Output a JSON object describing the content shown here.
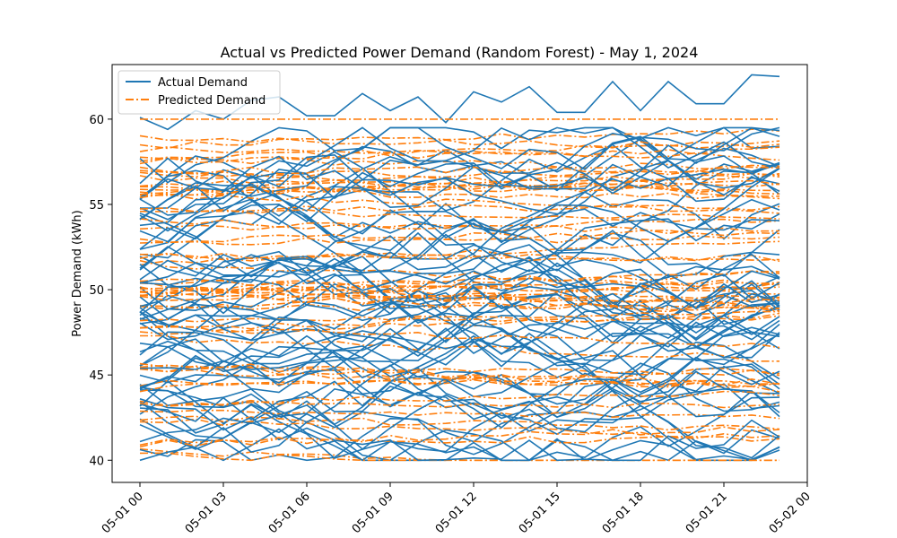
{
  "chart_data": {
    "type": "line",
    "title": "Actual vs Predicted Power Demand (Random Forest) - May 1, 2024",
    "xlabel": "",
    "ylabel": "Power Demand (kWh)",
    "ylim": [
      38.7,
      63.2
    ],
    "xlim_hours": [
      -1.0,
      24.0
    ],
    "x_ticks": [
      {
        "hours": 0,
        "label": "05-01 00"
      },
      {
        "hours": 3,
        "label": "05-01 03"
      },
      {
        "hours": 6,
        "label": "05-01 06"
      },
      {
        "hours": 9,
        "label": "05-01 09"
      },
      {
        "hours": 12,
        "label": "05-01 12"
      },
      {
        "hours": 15,
        "label": "05-01 15"
      },
      {
        "hours": 18,
        "label": "05-01 18"
      },
      {
        "hours": 21,
        "label": "05-01 21"
      },
      {
        "hours": 24,
        "label": "05-02 00"
      }
    ],
    "y_ticks": [
      40,
      45,
      50,
      55,
      60
    ],
    "x_hours": [
      0,
      1,
      2,
      3,
      4,
      5,
      6,
      7,
      8,
      9,
      10,
      11,
      12,
      13,
      14,
      15,
      16,
      17,
      18,
      19,
      20,
      21,
      22,
      23
    ],
    "legend": {
      "position": "upper-left"
    },
    "series": [
      {
        "name": "Actual Demand",
        "color": "#1f77b4",
        "style": "solid",
        "values": [
          60.1,
          59.4,
          60.5,
          60.0,
          61.1,
          61.3,
          60.2,
          60.2,
          61.5,
          60.5,
          61.3,
          59.8,
          61.6,
          61.0,
          61.9,
          60.4,
          60.4,
          62.2,
          60.5,
          62.2,
          60.9,
          60.9,
          62.6,
          62.5
        ]
      },
      {
        "name": "Predicted Demand",
        "color": "#ff7f0e",
        "style": "dashdot",
        "values": [
          60.0,
          60.0,
          60.0,
          60.0,
          60.0,
          60.0,
          60.0,
          60.0,
          60.0,
          60.0,
          60.0,
          60.0,
          60.0,
          60.0,
          60.0,
          60.0,
          60.0,
          60.0,
          60.0,
          60.0,
          60.0,
          60.0,
          60.0,
          60.0
        ]
      }
    ],
    "background_lines_note_count": 0
  }
}
